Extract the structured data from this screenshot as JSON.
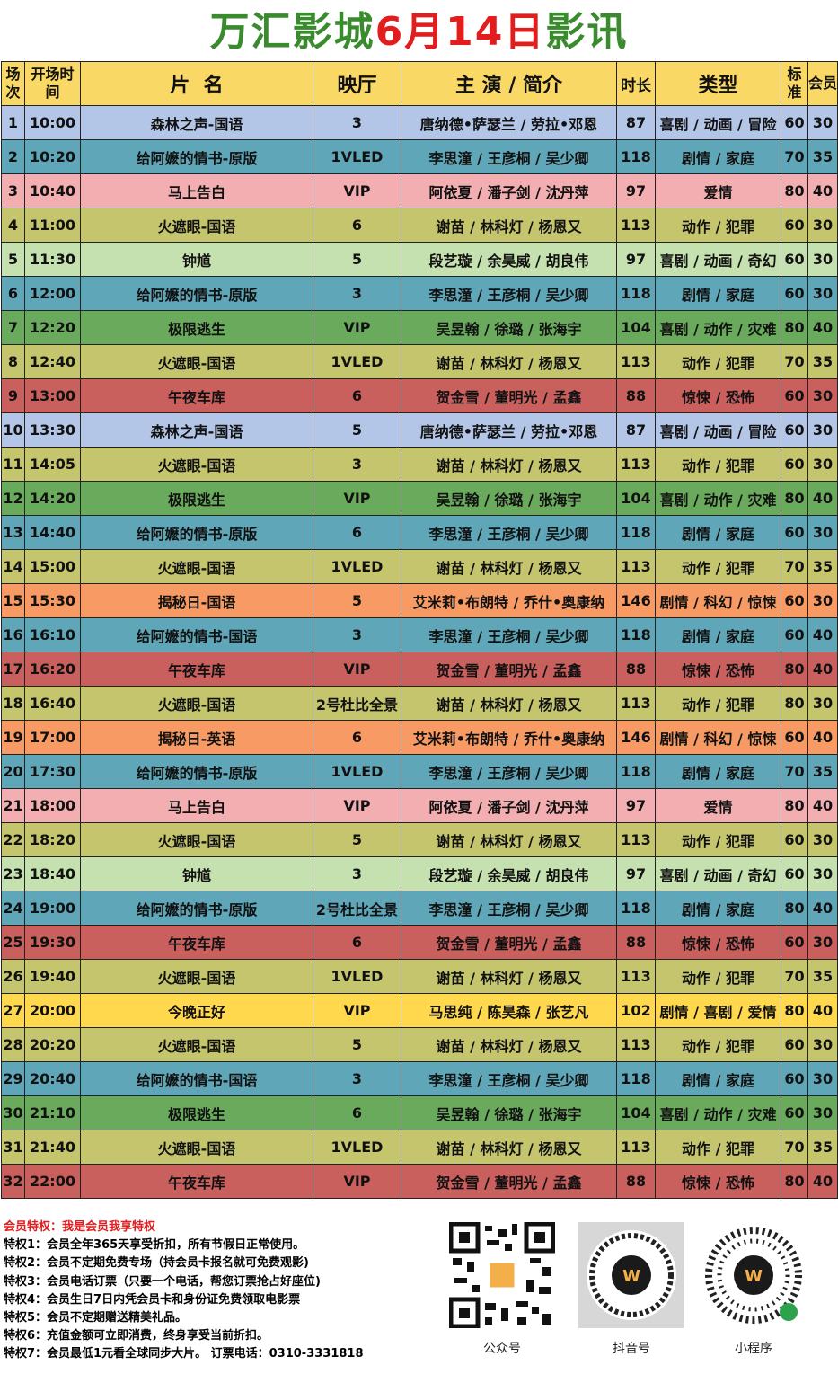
{
  "title": {
    "part1": "万汇影城",
    "part2": "6月14日",
    "part3": "影讯"
  },
  "headers": {
    "num": "场次",
    "time": "开场时间",
    "film": "片  名",
    "hall": "映厅",
    "cast": "主 演 / 简介",
    "dur": "时长",
    "genre": "类型",
    "std": "标准",
    "mem": "会员"
  },
  "colors": {
    "blue": "#b4c6e7",
    "teal": "#5fa7b8",
    "pink": "#f2aeb0",
    "olive": "#c4c56c",
    "lightgreen": "#c6e1b0",
    "green": "#6aaa5c",
    "red": "#c9605e",
    "orange": "#f79a63",
    "yellow": "#ffd84e"
  },
  "rows": [
    {
      "n": "1",
      "time": "10:00",
      "film": "森林之声-国语",
      "hall": "3",
      "cast": "唐纳德•萨瑟兰 / 劳拉•邓恩",
      "dur": "87",
      "genre": "喜剧 / 动画 / 冒险",
      "std": "60",
      "mem": "30",
      "color": "blue"
    },
    {
      "n": "2",
      "time": "10:20",
      "film": "给阿嬷的情书-原版",
      "hall": "1VLED",
      "cast": "李思潼 / 王彦桐 / 吴少卿",
      "dur": "118",
      "genre": "剧情 / 家庭",
      "std": "70",
      "mem": "35",
      "color": "teal"
    },
    {
      "n": "3",
      "time": "10:40",
      "film": "马上告白",
      "hall": "VIP",
      "cast": "阿依夏 / 潘子剑 / 沈丹萍",
      "dur": "97",
      "genre": "爱情",
      "std": "80",
      "mem": "40",
      "color": "pink"
    },
    {
      "n": "4",
      "time": "11:00",
      "film": "火遮眼-国语",
      "hall": "6",
      "cast": "谢苗 / 林科灯 / 杨恩又",
      "dur": "113",
      "genre": "动作 / 犯罪",
      "std": "60",
      "mem": "30",
      "color": "olive"
    },
    {
      "n": "5",
      "time": "11:30",
      "film": "钟馗",
      "hall": "5",
      "cast": "段艺璇 / 余昊威 / 胡良伟",
      "dur": "97",
      "genre": "喜剧 / 动画 / 奇幻",
      "std": "60",
      "mem": "30",
      "color": "lightgreen"
    },
    {
      "n": "6",
      "time": "12:00",
      "film": "给阿嬷的情书-原版",
      "hall": "3",
      "cast": "李思潼 / 王彦桐 / 吴少卿",
      "dur": "118",
      "genre": "剧情 / 家庭",
      "std": "60",
      "mem": "30",
      "color": "teal"
    },
    {
      "n": "7",
      "time": "12:20",
      "film": "极限逃生",
      "hall": "VIP",
      "cast": "吴昱翰 / 徐璐 / 张海宇",
      "dur": "104",
      "genre": "喜剧 / 动作 / 灾难",
      "std": "80",
      "mem": "40",
      "color": "green"
    },
    {
      "n": "8",
      "time": "12:40",
      "film": "火遮眼-国语",
      "hall": "1VLED",
      "cast": "谢苗 / 林科灯 / 杨恩又",
      "dur": "113",
      "genre": "动作 / 犯罪",
      "std": "70",
      "mem": "35",
      "color": "olive"
    },
    {
      "n": "9",
      "time": "13:00",
      "film": "午夜车库",
      "hall": "6",
      "cast": "贺金雪 / 董明光 / 孟鑫",
      "dur": "88",
      "genre": "惊悚 / 恐怖",
      "std": "60",
      "mem": "30",
      "color": "red"
    },
    {
      "n": "10",
      "time": "13:30",
      "film": "森林之声-国语",
      "hall": "5",
      "cast": "唐纳德•萨瑟兰 / 劳拉•邓恩",
      "dur": "87",
      "genre": "喜剧 / 动画 / 冒险",
      "std": "60",
      "mem": "30",
      "color": "blue"
    },
    {
      "n": "11",
      "time": "14:05",
      "film": "火遮眼-国语",
      "hall": "3",
      "cast": "谢苗 / 林科灯 / 杨恩又",
      "dur": "113",
      "genre": "动作 / 犯罪",
      "std": "60",
      "mem": "30",
      "color": "olive"
    },
    {
      "n": "12",
      "time": "14:20",
      "film": "极限逃生",
      "hall": "VIP",
      "cast": "吴昱翰 / 徐璐 / 张海宇",
      "dur": "104",
      "genre": "喜剧 / 动作 / 灾难",
      "std": "80",
      "mem": "40",
      "color": "green"
    },
    {
      "n": "13",
      "time": "14:40",
      "film": "给阿嬷的情书-原版",
      "hall": "6",
      "cast": "李思潼 / 王彦桐 / 吴少卿",
      "dur": "118",
      "genre": "剧情 / 家庭",
      "std": "60",
      "mem": "30",
      "color": "teal"
    },
    {
      "n": "14",
      "time": "15:00",
      "film": "火遮眼-国语",
      "hall": "1VLED",
      "cast": "谢苗 / 林科灯 / 杨恩又",
      "dur": "113",
      "genre": "动作 / 犯罪",
      "std": "70",
      "mem": "35",
      "color": "olive"
    },
    {
      "n": "15",
      "time": "15:30",
      "film": "揭秘日-国语",
      "hall": "5",
      "cast": "艾米莉•布朗特 / 乔什•奥康纳",
      "dur": "146",
      "genre": "剧情 / 科幻 / 惊悚",
      "std": "60",
      "mem": "30",
      "color": "orange"
    },
    {
      "n": "16",
      "time": "16:10",
      "film": "给阿嬷的情书-国语",
      "hall": "3",
      "cast": "李思潼 / 王彦桐 / 吴少卿",
      "dur": "118",
      "genre": "剧情 / 家庭",
      "std": "60",
      "mem": "40",
      "color": "teal"
    },
    {
      "n": "17",
      "time": "16:20",
      "film": "午夜车库",
      "hall": "VIP",
      "cast": "贺金雪 / 董明光 / 孟鑫",
      "dur": "88",
      "genre": "惊悚 / 恐怖",
      "std": "80",
      "mem": "40",
      "color": "red"
    },
    {
      "n": "18",
      "time": "16:40",
      "film": "火遮眼-国语",
      "hall": "2号杜比全景",
      "cast": "谢苗 / 林科灯 / 杨恩又",
      "dur": "113",
      "genre": "动作 / 犯罪",
      "std": "80",
      "mem": "30",
      "color": "olive"
    },
    {
      "n": "19",
      "time": "17:00",
      "film": "揭秘日-英语",
      "hall": "6",
      "cast": "艾米莉•布朗特 / 乔什•奥康纳",
      "dur": "146",
      "genre": "剧情 / 科幻 / 惊悚",
      "std": "60",
      "mem": "40",
      "color": "orange"
    },
    {
      "n": "20",
      "time": "17:30",
      "film": "给阿嬷的情书-原版",
      "hall": "1VLED",
      "cast": "李思潼 / 王彦桐 / 吴少卿",
      "dur": "118",
      "genre": "剧情 / 家庭",
      "std": "70",
      "mem": "35",
      "color": "teal"
    },
    {
      "n": "21",
      "time": "18:00",
      "film": "马上告白",
      "hall": "VIP",
      "cast": "阿依夏 / 潘子剑 / 沈丹萍",
      "dur": "97",
      "genre": "爱情",
      "std": "80",
      "mem": "40",
      "color": "pink"
    },
    {
      "n": "22",
      "time": "18:20",
      "film": "火遮眼-国语",
      "hall": "5",
      "cast": "谢苗 / 林科灯 / 杨恩又",
      "dur": "113",
      "genre": "动作 / 犯罪",
      "std": "60",
      "mem": "30",
      "color": "olive"
    },
    {
      "n": "23",
      "time": "18:40",
      "film": "钟馗",
      "hall": "3",
      "cast": "段艺璇 / 余昊威 / 胡良伟",
      "dur": "97",
      "genre": "喜剧 / 动画 / 奇幻",
      "std": "60",
      "mem": "30",
      "color": "lightgreen"
    },
    {
      "n": "24",
      "time": "19:00",
      "film": "给阿嬷的情书-原版",
      "hall": "2号杜比全景",
      "cast": "李思潼 / 王彦桐 / 吴少卿",
      "dur": "118",
      "genre": "剧情 / 家庭",
      "std": "80",
      "mem": "40",
      "color": "teal"
    },
    {
      "n": "25",
      "time": "19:30",
      "film": "午夜车库",
      "hall": "6",
      "cast": "贺金雪 / 董明光 / 孟鑫",
      "dur": "88",
      "genre": "惊悚 / 恐怖",
      "std": "60",
      "mem": "30",
      "color": "red"
    },
    {
      "n": "26",
      "time": "19:40",
      "film": "火遮眼-国语",
      "hall": "1VLED",
      "cast": "谢苗 / 林科灯 / 杨恩又",
      "dur": "113",
      "genre": "动作 / 犯罪",
      "std": "70",
      "mem": "35",
      "color": "olive"
    },
    {
      "n": "27",
      "time": "20:00",
      "film": "今晚正好",
      "hall": "VIP",
      "cast": "马思纯 / 陈昊森 / 张艺凡",
      "dur": "102",
      "genre": "剧情 / 喜剧 / 爱情",
      "std": "80",
      "mem": "40",
      "color": "yellow"
    },
    {
      "n": "28",
      "time": "20:20",
      "film": "火遮眼-国语",
      "hall": "5",
      "cast": "谢苗 / 林科灯 / 杨恩又",
      "dur": "113",
      "genre": "动作 / 犯罪",
      "std": "60",
      "mem": "30",
      "color": "olive"
    },
    {
      "n": "29",
      "time": "20:40",
      "film": "给阿嬷的情书-国语",
      "hall": "3",
      "cast": "李思潼 / 王彦桐 / 吴少卿",
      "dur": "118",
      "genre": "剧情 / 家庭",
      "std": "60",
      "mem": "30",
      "color": "teal"
    },
    {
      "n": "30",
      "time": "21:10",
      "film": "极限逃生",
      "hall": "6",
      "cast": "吴昱翰 / 徐璐 / 张海宇",
      "dur": "104",
      "genre": "喜剧 / 动作 / 灾难",
      "std": "60",
      "mem": "30",
      "color": "green"
    },
    {
      "n": "31",
      "time": "21:40",
      "film": "火遮眼-国语",
      "hall": "1VLED",
      "cast": "谢苗 / 林科灯 / 杨恩又",
      "dur": "113",
      "genre": "动作 / 犯罪",
      "std": "70",
      "mem": "35",
      "color": "olive"
    },
    {
      "n": "32",
      "time": "22:00",
      "film": "午夜车库",
      "hall": "VIP",
      "cast": "贺金雪 / 董明光 / 孟鑫",
      "dur": "88",
      "genre": "惊悚 / 恐怖",
      "std": "80",
      "mem": "40",
      "color": "red"
    }
  ],
  "perks": {
    "heading": "会员特权：我是会员我享特权",
    "items": [
      "特权1：会员全年365天享受折扣，所有节假日正常使用。",
      "特权2：会员不定期免费专场（持会员卡报名就可免费观影)",
      "特权3：会员电话订票（只要一个电话，帮您订票抢占好座位)",
      "特权4：会员生日7日内凭会员卡和身份证免费领取电影票",
      "特权5：会员不定期赠送精美礼品。",
      "特权6：充值金额可立即消费，终身享受当前折扣。",
      "特权7：会员最低1元看全球同步大片。 订票电话：0310-3331818"
    ]
  },
  "qr": {
    "wechat": "公众号",
    "douyin": "抖音号",
    "mini": "小程序"
  }
}
